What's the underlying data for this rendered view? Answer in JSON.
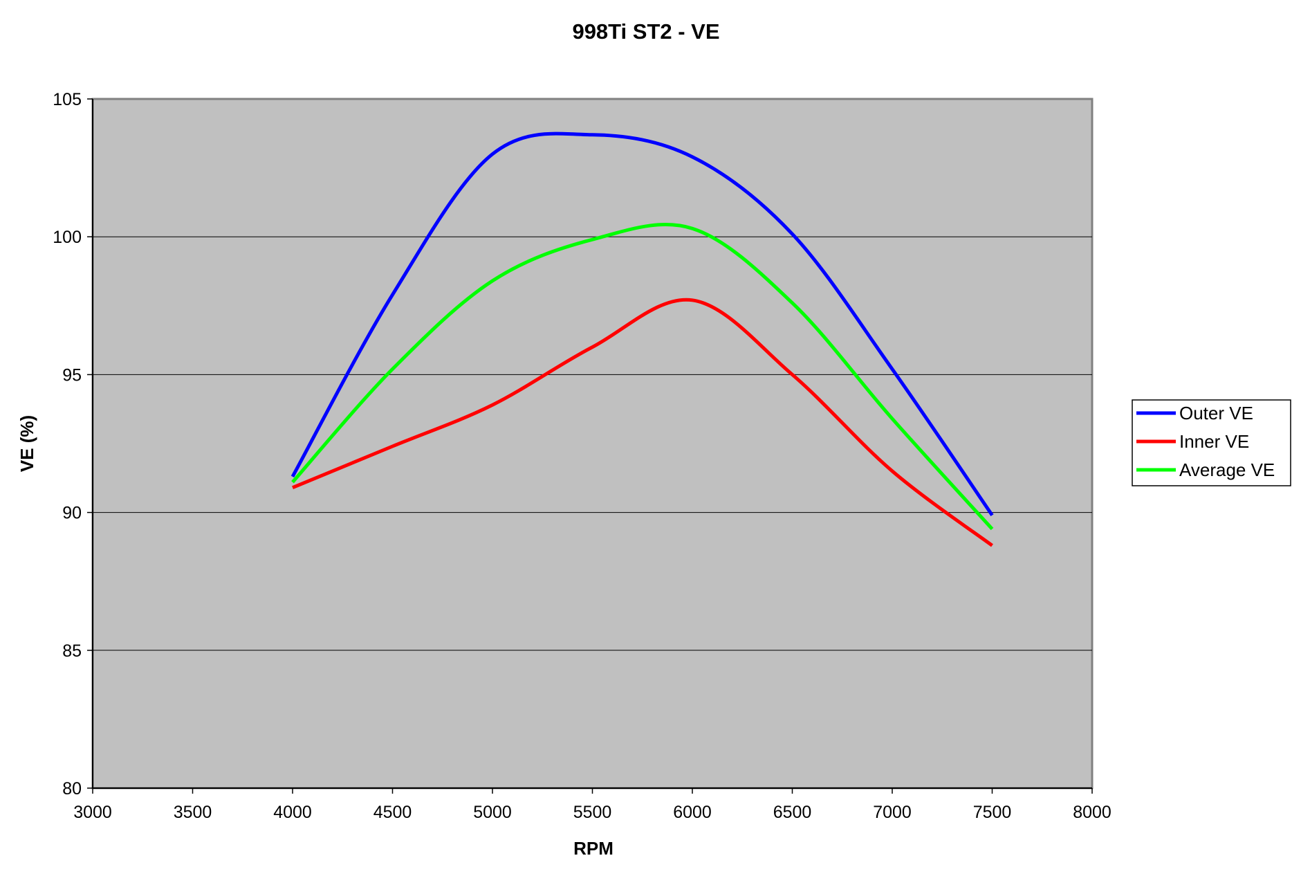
{
  "chart_data": {
    "type": "line",
    "title": "998Ti ST2 - VE",
    "xlabel": "RPM",
    "ylabel": "VE (%)",
    "xlim": [
      3000,
      8000
    ],
    "ylim": [
      80,
      105
    ],
    "xticks": [
      3000,
      3500,
      4000,
      4500,
      5000,
      5500,
      6000,
      6500,
      7000,
      7500,
      8000
    ],
    "yticks": [
      80,
      85,
      90,
      95,
      100,
      105
    ],
    "grid": "horizontal",
    "legend_position": "right",
    "plot_background": "#c0c0c0",
    "x": [
      4000,
      4500,
      5000,
      5500,
      6000,
      6500,
      7000,
      7500
    ],
    "series": [
      {
        "name": "Outer VE",
        "color": "#0000ff",
        "values": [
          91.3,
          97.9,
          103.0,
          103.7,
          102.9,
          100.1,
          95.2,
          89.9
        ]
      },
      {
        "name": "Inner VE",
        "color": "#ff0000",
        "values": [
          90.9,
          92.4,
          93.9,
          96.0,
          97.7,
          95.0,
          91.5,
          88.8
        ]
      },
      {
        "name": "Average VE",
        "color": "#00ff00",
        "values": [
          91.1,
          95.2,
          98.4,
          99.9,
          100.3,
          97.6,
          93.4,
          89.4
        ]
      }
    ]
  }
}
